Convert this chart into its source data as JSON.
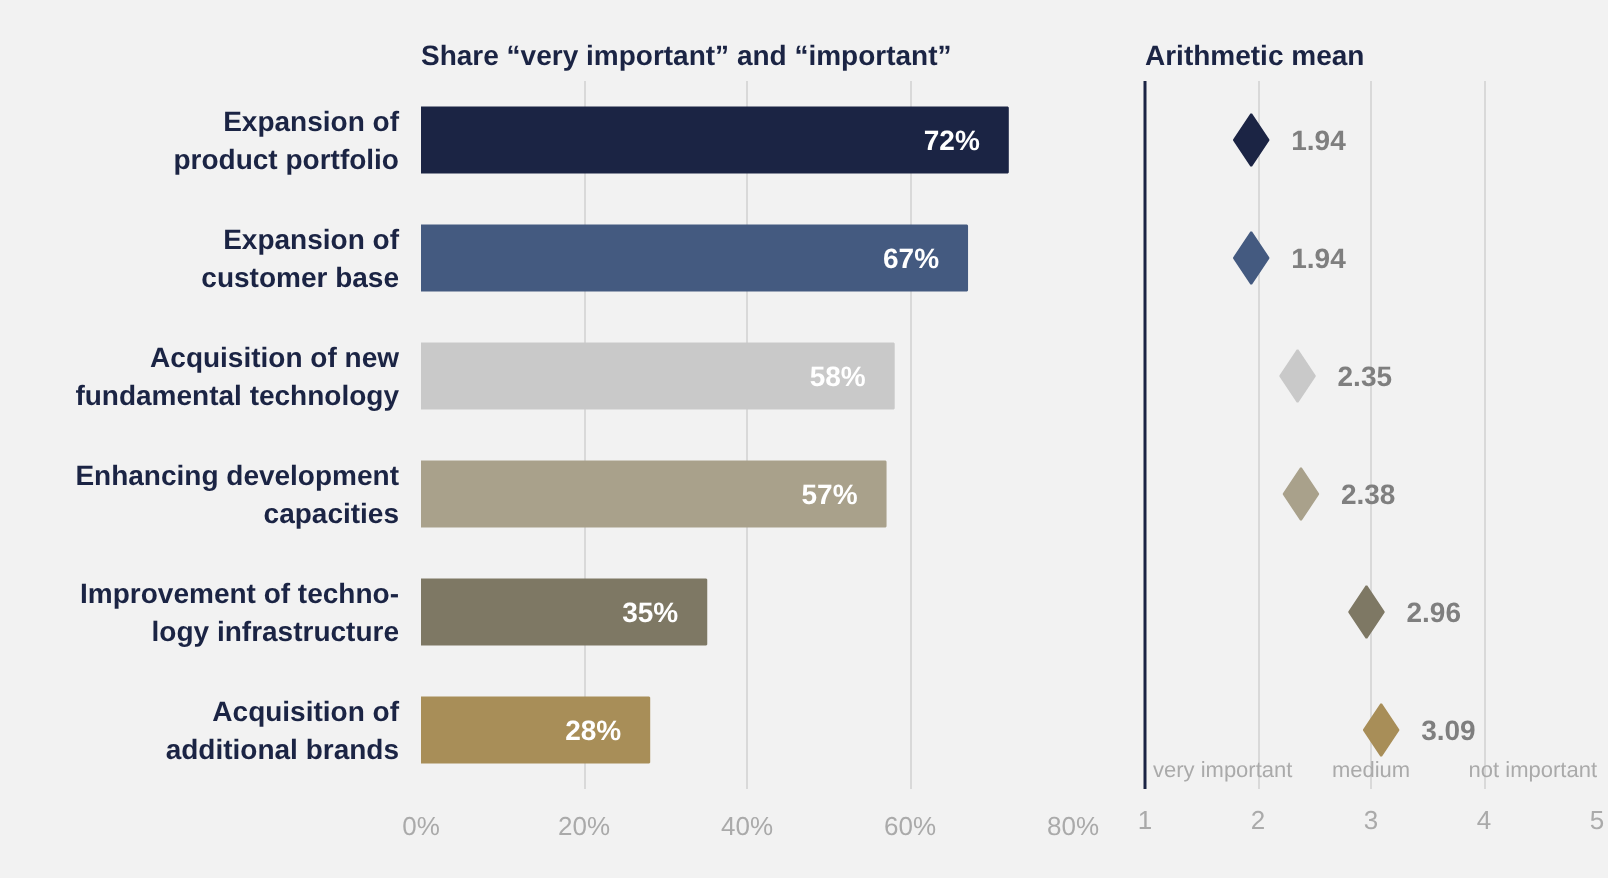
{
  "chart_data": [
    {
      "type": "bar",
      "orientation": "horizontal",
      "title": "Share “very important” and “important”",
      "categories": [
        "Expansion of\nproduct portfolio",
        "Expansion of\ncustomer base",
        "Acquisition of new\nfundamental technology",
        "Enhancing development\ncapacities",
        "Improvement of techno-\nlogy infrastructure",
        "Acquisition of\nadditional brands"
      ],
      "values": [
        72,
        67,
        58,
        57,
        35,
        28
      ],
      "colors": [
        "#1b2444",
        "#445a80",
        "#c9c9c9",
        "#a9a18b",
        "#7e7864",
        "#a88e58"
      ],
      "value_labels": [
        "72%",
        "67%",
        "58%",
        "57%",
        "35%",
        "28%"
      ],
      "xlim": [
        0,
        80
      ],
      "xticks": [
        {
          "value": 0,
          "label": "0%"
        },
        {
          "value": 20,
          "label": "20%"
        },
        {
          "value": 40,
          "label": "40%"
        },
        {
          "value": 60,
          "label": "60%"
        },
        {
          "value": 80,
          "label": "80%"
        }
      ],
      "grid": "x"
    },
    {
      "type": "scatter",
      "title": "Arithmetic mean",
      "categories": [
        null,
        null,
        null,
        null,
        null,
        null
      ],
      "values": [
        1.94,
        1.94,
        2.35,
        2.38,
        2.96,
        3.09
      ],
      "colors": [
        "#1b2444",
        "#445a80",
        "#c9c9c9",
        "#a9a18b",
        "#7e7864",
        "#a88e58"
      ],
      "marker": "diamond",
      "data_labels": true,
      "orientation": "horizontal",
      "tick_labels": "x",
      "xlim": [
        1,
        5
      ],
      "xticks": [
        1,
        2,
        3,
        4,
        5
      ],
      "grid": "x",
      "annotations": [
        "very important",
        "medium",
        "not important"
      ]
    }
  ]
}
